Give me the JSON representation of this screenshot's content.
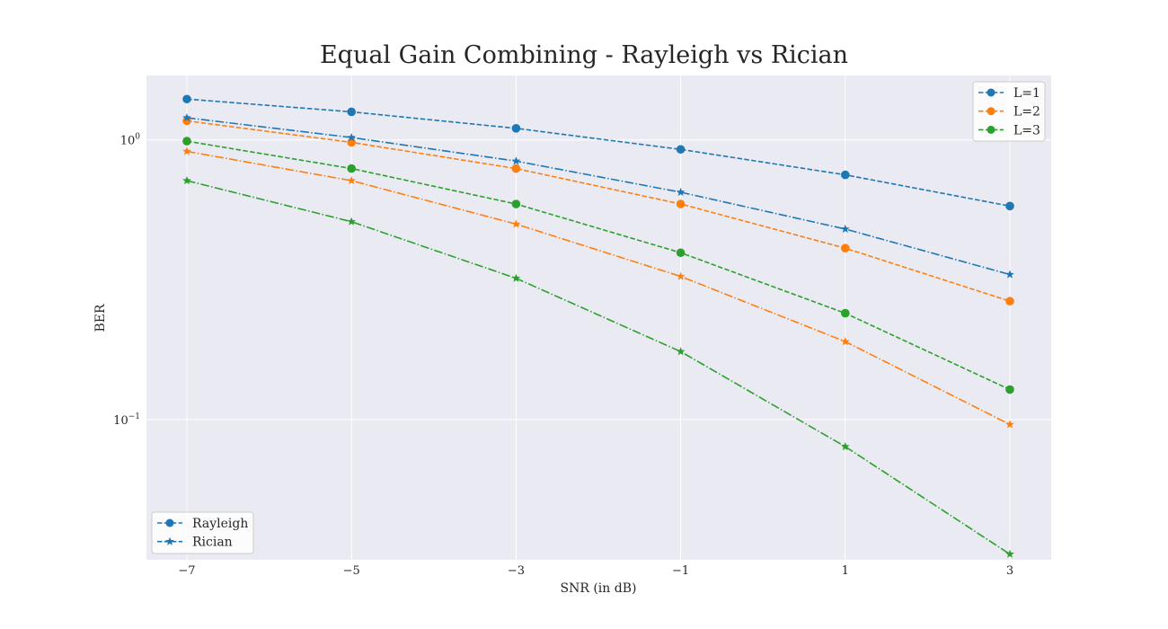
{
  "chart_data": {
    "type": "line",
    "title": "Equal Gain Combining - Rayleigh vs Rician",
    "xlabel": "SNR (in dB)",
    "ylabel": "BER",
    "x": [
      -7,
      -5,
      -3,
      -1,
      1,
      3
    ],
    "xticks": [
      -7,
      -5,
      -3,
      -1,
      1,
      3
    ],
    "xtick_labels": [
      "−7",
      "−5",
      "−3",
      "−1",
      "1",
      "3"
    ],
    "yscale": "log",
    "ylim": [
      0.0315,
      1.7
    ],
    "yticks": [
      {
        "value": 1,
        "base": "10",
        "exp": "0"
      },
      {
        "value": 0.1,
        "base": "10",
        "exp": "−1"
      }
    ],
    "grid": true,
    "series": [
      {
        "name": "L=1",
        "fading": "Rayleigh",
        "color": "#1f77b4",
        "marker": "circle",
        "linestyle": "dashed",
        "values": [
          1.4,
          1.26,
          1.1,
          0.925,
          0.75,
          0.58
        ]
      },
      {
        "name": "L=2",
        "fading": "Rayleigh",
        "color": "#ff7f0e",
        "marker": "circle",
        "linestyle": "dashed",
        "values": [
          1.17,
          0.98,
          0.79,
          0.59,
          0.41,
          0.265
        ]
      },
      {
        "name": "L=3",
        "fading": "Rayleigh",
        "color": "#2ca02c",
        "marker": "circle",
        "linestyle": "dashed",
        "values": [
          0.99,
          0.79,
          0.59,
          0.395,
          0.24,
          0.128
        ]
      },
      {
        "name": "L=1",
        "fading": "Rician",
        "color": "#1f77b4",
        "marker": "star",
        "linestyle": "dashdot",
        "values": [
          1.2,
          1.02,
          0.84,
          0.65,
          0.48,
          0.33
        ]
      },
      {
        "name": "L=2",
        "fading": "Rician",
        "color": "#ff7f0e",
        "marker": "star",
        "linestyle": "dashdot",
        "values": [
          0.91,
          0.715,
          0.5,
          0.325,
          0.19,
          0.096
        ]
      },
      {
        "name": "L=3",
        "fading": "Rician",
        "color": "#2ca02c",
        "marker": "star",
        "linestyle": "dashdot",
        "values": [
          0.715,
          0.51,
          0.32,
          0.175,
          0.08,
          0.033
        ]
      }
    ],
    "legends": [
      {
        "placement": "upper right",
        "entries": [
          {
            "label": "L=1",
            "color": "#1f77b4",
            "marker": "circle",
            "linestyle": "dashed"
          },
          {
            "label": "L=2",
            "color": "#ff7f0e",
            "marker": "circle",
            "linestyle": "dashed"
          },
          {
            "label": "L=3",
            "color": "#2ca02c",
            "marker": "circle",
            "linestyle": "dashed"
          }
        ]
      },
      {
        "placement": "lower left",
        "entries": [
          {
            "label": "Rayleigh",
            "color": "#1f77b4",
            "marker": "circle",
            "linestyle": "dashed"
          },
          {
            "label": "Rician",
            "color": "#1f77b4",
            "marker": "star",
            "linestyle": "dashed"
          }
        ]
      }
    ],
    "colors": {
      "plot_background": "#eaeaf2",
      "grid": "#ffffff",
      "text": "#262626"
    }
  }
}
